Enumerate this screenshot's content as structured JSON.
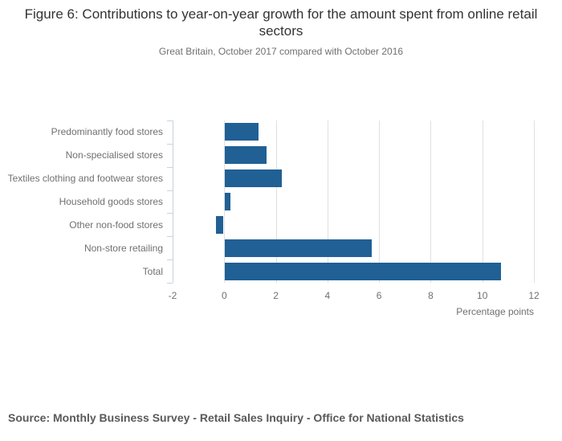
{
  "title": "Figure 6: Contributions to year-on-year growth for the amount spent from online retail sectors",
  "subtitle": "Great Britain, October 2017 compared with October 2016",
  "source": "Source: Monthly Business Survey - Retail Sales Inquiry - Office for National Statistics",
  "chart_data": {
    "type": "bar",
    "orientation": "horizontal",
    "title": "Figure 6: Contributions to year-on-year growth for the amount spent from online retail sectors",
    "subtitle": "Great Britain, October 2017 compared with October 2016",
    "categories": [
      "Predominantly food stores",
      "Non-specialised stores",
      "Textiles clothing and footwear stores",
      "Household goods stores",
      "Other non-food stores",
      "Non-store retailing",
      "Total"
    ],
    "values": [
      1.3,
      1.6,
      2.2,
      0.2,
      -0.3,
      5.7,
      10.7
    ],
    "xlabel": "Percentage points",
    "ylabel": "",
    "xlim": [
      -2,
      12
    ],
    "xticks": [
      -2,
      0,
      2,
      4,
      6,
      8,
      10,
      12
    ],
    "grid": "vertical",
    "legend": "none",
    "bar_color": "#206095",
    "gridline_color": "#e0e0e0",
    "axis_color": "#c6d4de",
    "label_color": "#707070",
    "title_color": "#333333"
  }
}
